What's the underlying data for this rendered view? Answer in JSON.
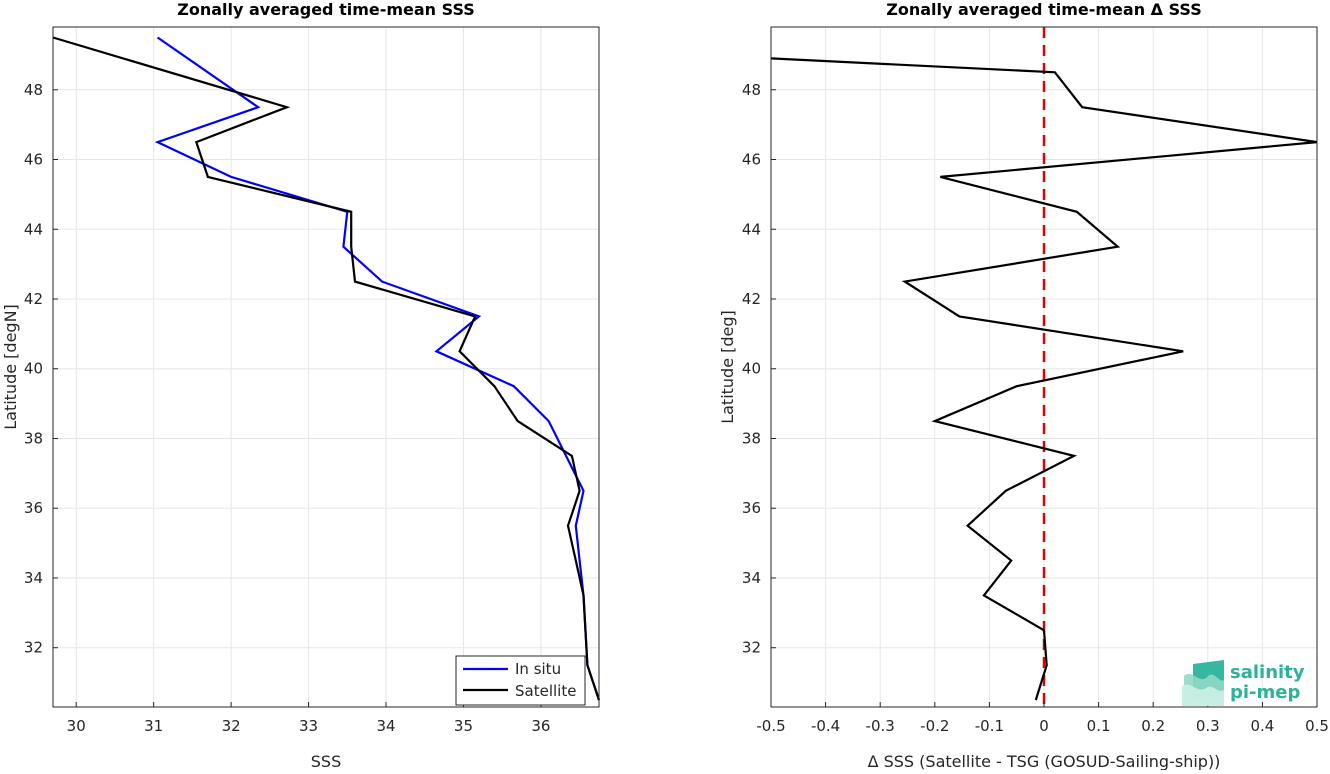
{
  "chart_data": [
    {
      "type": "line",
      "title": "Zonally averaged time-mean SSS",
      "xlabel": "SSS",
      "ylabel": "Latitude [degN]",
      "xlim": [
        29.7,
        36.75
      ],
      "ylim": [
        30.3,
        49.8
      ],
      "xticks": [
        30,
        31,
        32,
        33,
        34,
        35,
        36
      ],
      "yticks": [
        32,
        34,
        36,
        38,
        40,
        42,
        44,
        46,
        48
      ],
      "grid": true,
      "legend_position": "bottom-right",
      "series": [
        {
          "name": "In situ",
          "color": "#0000ff",
          "points": [
            [
              31.05,
              49.5
            ],
            [
              32.35,
              47.5
            ],
            [
              31.05,
              46.5
            ],
            [
              32.0,
              45.5
            ],
            [
              33.5,
              44.5
            ],
            [
              33.45,
              43.5
            ],
            [
              33.95,
              42.5
            ],
            [
              35.2,
              41.5
            ],
            [
              34.65,
              40.5
            ],
            [
              35.65,
              39.5
            ],
            [
              36.1,
              38.5
            ],
            [
              36.55,
              36.5
            ],
            [
              36.45,
              35.5
            ],
            [
              36.5,
              34.5
            ],
            [
              36.55,
              33.5
            ],
            [
              36.6,
              31.5
            ],
            [
              36.75,
              30.5
            ]
          ]
        },
        {
          "name": "Satellite",
          "color": "#000000",
          "points": [
            [
              29.7,
              49.5
            ],
            [
              32.72,
              47.5
            ],
            [
              31.55,
              46.5
            ],
            [
              31.7,
              45.5
            ],
            [
              33.55,
              44.5
            ],
            [
              33.55,
              43.5
            ],
            [
              33.6,
              42.5
            ],
            [
              35.15,
              41.5
            ],
            [
              34.95,
              40.5
            ],
            [
              35.4,
              39.5
            ],
            [
              35.7,
              38.5
            ],
            [
              36.4,
              37.5
            ],
            [
              36.5,
              36.5
            ],
            [
              36.35,
              35.5
            ],
            [
              36.45,
              34.5
            ],
            [
              36.55,
              33.5
            ],
            [
              36.6,
              31.5
            ],
            [
              36.75,
              30.5
            ]
          ]
        }
      ]
    },
    {
      "type": "line",
      "title": "Zonally averaged time-mean Δ SSS",
      "xlabel": "Δ SSS (Satellite - TSG (GOSUD-Sailing-ship))",
      "ylabel": "Latitude [deg]",
      "xlim": [
        -0.5,
        0.5
      ],
      "ylim": [
        30.3,
        49.8
      ],
      "xticks": [
        -0.5,
        -0.4,
        -0.3,
        -0.2,
        -0.1,
        0,
        0.1,
        0.2,
        0.3,
        0.4,
        0.5
      ],
      "xtick_labels": [
        "-0.5",
        "-0.4",
        "-0.3",
        "-0.2",
        "-0.1",
        "0",
        "0.1",
        "0.2",
        "0.3",
        "0.4",
        "0.5"
      ],
      "yticks": [
        32,
        34,
        36,
        38,
        40,
        42,
        44,
        46,
        48
      ],
      "grid": true,
      "zero_line": {
        "x": 0,
        "color": "#e00000",
        "style": "dashed"
      },
      "series": [
        {
          "color": "#000000",
          "points": [
            [
              -0.5,
              48.9
            ],
            [
              0.02,
              48.5
            ],
            [
              0.07,
              47.5
            ],
            [
              0.5,
              46.5
            ],
            [
              -0.19,
              45.5
            ],
            [
              0.06,
              44.5
            ],
            [
              0.135,
              43.5
            ],
            [
              -0.255,
              42.5
            ],
            [
              -0.155,
              41.5
            ],
            [
              0.255,
              40.5
            ],
            [
              -0.05,
              39.5
            ],
            [
              -0.2,
              38.5
            ],
            [
              0.055,
              37.5
            ],
            [
              -0.07,
              36.5
            ],
            [
              -0.14,
              35.5
            ],
            [
              -0.06,
              34.5
            ],
            [
              -0.11,
              33.5
            ],
            [
              0.0,
              32.5
            ],
            [
              0.005,
              31.5
            ],
            [
              -0.015,
              30.5
            ]
          ]
        }
      ]
    }
  ],
  "logo": {
    "line1": "salinity",
    "line2": "pi-mep",
    "color": "#2bb39a"
  }
}
